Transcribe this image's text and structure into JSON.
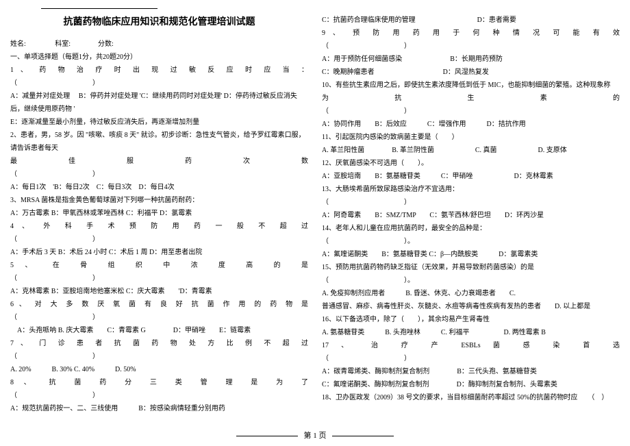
{
  "title": "抗菌药物临床应用知识和规范化管理培训试题",
  "meta_line": "姓名: 　　　　科室:　　　　分数:",
  "section1": "一、单项选择题（每题1分，共20题20分）",
  "left": {
    "q1a": "1 、 药 物 治 疗 时 出 现 过 敏 反 应 时 应 当 ：",
    "q1b": "（　　　　　　　　　　　）",
    "q1opts": "A：减量并对症处理　 B：停药并对症处理 'C：继续用药同时对症处理' D：停药待过敏反应消失后，继续使用原药物 '",
    "q1e": "E：逐渐减量至最小剂量，待过敏反应消失后，再逐渐增加剂量",
    "q2a": "2、患者，男，58 岁。因 \"咳嗽、咳痰 8 天\" 就诊。初步诊断：急性支气管炎，给予罗红霉素口服，请告诉患者每天",
    "q2b_just": "最 佳 服 药 次 数",
    "q2c": "（　　　　　　　　　　　）",
    "q2opts": "A：每日1次　'B：每日2次　C：每日3次　D：每日4次",
    "q3": "3、MRSA 菌株是指金黄色葡萄球菌对下列哪一种抗菌药耐药：",
    "q3opts": "A：万古霉素 B：甲氧西林或苯唑西林 C：利福平 D：氯霉素",
    "q4a_just": "4 、 外 科 手 术 预 防 用 药 一 般 不 超 过",
    "q4b": "（　　　　　　　　　　　）",
    "q4opts": "A：手术后 3 天 B：术后 24 小时 C：术后 1 周 D：用至患者出院",
    "q5a_just": "5 、 在 骨 组 织 中 浓 度 高 的 是",
    "q5b": "（　　　　　　　　　　　）",
    "q5opts": "A：克林霉素 B：亚胺培南地他塞米松 C：庆大霉素　　'D：青霉素",
    "q6a_just": "6 、 对 大 多 数 厌 氧 菌 有 良 好 抗 菌 作 用 的 药 物 是",
    "q6b": "（　　　　　　　　　　　）",
    "q6opts": "　A：头孢哌呐 B. 庆大霉素　　C：青霉素 G　　　　D：甲硝唑　　E：链霉素",
    "q7a_just": "7 、 门 诊 患 者 抗 菌 药 物 处 方 比 例 不 超 过",
    "q7b": "（　　　　　　　　　　　）",
    "q7opts": "A. 20%　　　B. 30% C. 40%　　　D. 50%",
    "q8a_just": "8 、 抗 菌 药 分 三 类 管 理 是 为 了",
    "q8b": "（　　　　　　　　　　　）",
    "q8opts": "A：规范抗菌药按一、二、三线使用　　　B：按感染病情轻重分别用药"
  },
  "right": {
    "q8c": "C：抗菌药合理临床使用的管理　　　　　　　　　D：患者需要",
    "q9a_just": "9 、 预 防 用 药 用 于 何 种 情 况 可 能 有 效",
    "q9b": "（　　　　　　　　　　　）",
    "q9opts1": "A：用于预防任何细菌感染　　　　　　　B：长期用药预防",
    "q9opts2": "C：晚期肿瘤患者　　　　　　　　　　D：风湿热复发",
    "q10a": "10、有些抗生素应用之后，即使抗生素浓度降低到低于 MIC，也能抑制细菌的繁殖。这种现象称",
    "q10b_just": "为　　　　　　　　抗　　　　　　　　生　　　　　　　　素　　　　　　　　的",
    "q10c": "（　　　　　　　　　　　）",
    "q10opts": "A：协同作用　　B：后效应　　　C：增强作用　　　D：拮抗作用",
    "q11": "11、引起医院内感染的致病菌主要是（　　）",
    "q11opts1": "A. 革兰阳性菌　　　　B. 革兰阴性菌　　　　　　C. 真菌　　　　　　D. 支原体",
    "q12": "12、厌氧菌感染不可选用（　　）。",
    "q12opts": "A：亚胺培南　　B：氨基糖苷类　　　C：甲硝唑　　　　　　D：克林霉素",
    "q13a": "13、大肠埃希菌所致尿路感染治疗不宜选用：",
    "q13b": "（　　　　　　　　　　　）",
    "q13opts": "A：阿奇霉素　　B：SMZ/TMP　　C：氨苄西林/舒巴坦　　D：环丙沙星",
    "q14a": "14、老年人和儿童在应用抗菌药时，最安全的品种是：",
    "q14b": "（　　　　　　　　　　　）。",
    "q14opts": "A：氟喹诺酮类　　B：氨基糖苷类 C：β—内酰胺类　　　D：氯霉素类",
    "q15a": "15、预防用抗菌药物药缺乏指征（无效果，并易导致耐药菌感染）的是",
    "q15b": "（　　　　　　　　　　　）。",
    "q15opts1": "A. 免疫抑制剂应用者　　　B. 昏迷、休克、心力衰竭患者　　C.",
    "q15opts2": "普通感冒、麻疹、病毒性肝炎、灰髓炎、水痘等病毒性疾病有发热的患者　　D. 以上都是",
    "q16": "16、以下备选项中，除了（　　），其余均易产生肾毒性",
    "q16opts": "A. 氨基糖苷类　　　B. 头孢唑林　　　C. 利福平　　　　　D. 两性霉素 B",
    "q17a_just": "17 、 治 疗 产 ESBLs 菌 感 染 首 选",
    "q17b": "（　　　　　　　　　　　）",
    "q17opts1": "A：碳青霉烯类、酶抑制剂复合制剂　　　　B：三代头孢、氨基糖苷类",
    "q17opts2": "C：氟喹诺酮类、酶抑制剂复合制剂　　　　D：酶抑制剂复合制剂、头霉素类",
    "q18": "18、卫办医政发（2009）38 号文的要求，当目标细菌耐药率超过 50%的抗菌药物时应　　（　）"
  },
  "page_number": "第 1 页"
}
